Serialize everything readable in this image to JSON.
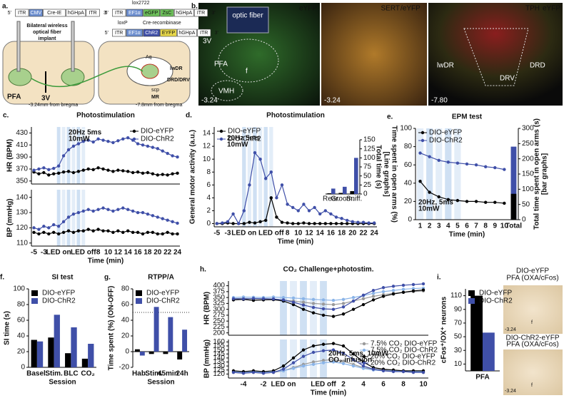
{
  "figure_a": {
    "label": "a.",
    "construct1": [
      "5'",
      "ITR",
      "CMV",
      "Cre-IE",
      "hGHpA",
      "ITR",
      "3'"
    ],
    "implant": [
      "Bilateral wireless",
      "optical fiber",
      "implant"
    ],
    "pfa": "PFA",
    "v3": "3V",
    "bregma1": "-3.24mm from bregma",
    "construct2": [
      "5'",
      "ITR",
      "EF1α",
      "eGFP",
      "ZsC",
      "hGHpA",
      "ITR",
      "3'"
    ],
    "lox": "lox2722",
    "loxp": "loxP",
    "cre": "Cre-recombinase",
    "construct3": [
      "5'",
      "ITR",
      "EF1α",
      "ChR2",
      "EYFP",
      "hGHpA",
      "ITR",
      "3'"
    ],
    "lwdr": "lwDR",
    "drd": "DRD/DRV",
    "scp": "scp",
    "mr": "MR",
    "bregma2": "-7.8mm from bregma",
    "aq": "Aq"
  },
  "figure_b": {
    "label": "b.",
    "img1": {
      "channel": "eYFP",
      "fiber": "optic fiber",
      "v3": "3V",
      "pfa": "PFA",
      "f": "f",
      "vmh": "VMH",
      "coord": "-3.24"
    },
    "img2": {
      "channel1": "SERT",
      "channel2": "/eYFP",
      "coord": "-3.24"
    },
    "img3": {
      "channel1": "TPH",
      "channel2": "eYFP",
      "lwdr": "lwDR",
      "drd": "DRD",
      "drv": "DRV",
      "coord": "-7.80"
    }
  },
  "figure_i": {
    "top": [
      "DIO-eYFP",
      "PFA (OXA/cFos)"
    ],
    "bottom": [
      "DIO-ChR2-eYFP",
      "PFA (OXA/cFos)"
    ],
    "coord1": "-3.24",
    "f1": "f",
    "coord2": "-3.24",
    "f2": "f"
  },
  "chart_data": [
    {
      "type": "line",
      "panel_label": "c.",
      "title": "Photostimulation",
      "ylabel": "HR (BPM)",
      "annotation": [
        "20Hz 5ms",
        "10mW"
      ],
      "legend": "upper right",
      "categories": [
        null,
        null,
        null,
        null,
        null,
        null,
        null,
        null,
        null,
        null,
        null,
        null,
        null,
        null,
        null,
        null,
        null,
        null,
        null,
        null,
        null,
        null,
        null,
        null,
        null,
        null,
        null,
        null,
        null,
        null
      ],
      "ylim": [
        345,
        440
      ],
      "yticks": [
        350,
        370,
        390,
        410,
        430
      ],
      "series": [
        {
          "name": "DIO-eYFP",
          "color": "#000000",
          "values": [
            365,
            362,
            364,
            360,
            362,
            363,
            365,
            366,
            364,
            366,
            368,
            370,
            369,
            372,
            370,
            368,
            366,
            368,
            367,
            366,
            364,
            365,
            363,
            364,
            362,
            360,
            361,
            360,
            362,
            363
          ]
        },
        {
          "name": "DIO-ChR2",
          "color": "#3f4fa8",
          "values": [
            368,
            370,
            372,
            369,
            371,
            375,
            392,
            402,
            408,
            412,
            416,
            418,
            415,
            420,
            418,
            416,
            414,
            417,
            420,
            422,
            418,
            412,
            410,
            408,
            406,
            404,
            400,
            396,
            392,
            390
          ]
        }
      ]
    },
    {
      "type": "line",
      "ylabel": "BP (mmHg)",
      "xlabel": "Time (min)",
      "categories": [
        "-5",
        null,
        "-3",
        null,
        null,
        "LED on",
        null,
        null,
        null,
        null,
        "LED off",
        null,
        null,
        "8",
        null,
        "10",
        null,
        "12",
        null,
        "14",
        null,
        "16",
        null,
        "18",
        null,
        "20",
        null,
        "22",
        null,
        "24"
      ],
      "ylim": [
        108,
        145
      ],
      "yticks": [
        110,
        120,
        130,
        140
      ],
      "series": [
        {
          "color": "#000000",
          "values": [
            117,
            116,
            117,
            116,
            117,
            116,
            117,
            118,
            117,
            118,
            118,
            119,
            118,
            119,
            118,
            118,
            117,
            118,
            117,
            118,
            117,
            117,
            116,
            117,
            117,
            116,
            116,
            117,
            116,
            116
          ]
        },
        {
          "color": "#3f4fa8",
          "values": [
            120,
            119,
            121,
            120,
            122,
            121,
            124,
            127,
            129,
            130,
            131,
            132,
            131,
            132,
            133,
            132,
            131,
            132,
            133,
            132,
            131,
            130,
            130,
            129,
            128,
            127,
            126,
            125,
            124,
            123
          ]
        }
      ]
    },
    {
      "type": "line",
      "panel_label": "d.",
      "title": "Photostimulation",
      "ylabel": "General motor activity (a.u.)",
      "xlabel": "Time (min)",
      "annotation": [
        "20Hz 5ms",
        "10mW"
      ],
      "legend": "upper left",
      "categories": [
        "-5",
        null,
        "-3",
        null,
        null,
        "LED on",
        null,
        null,
        null,
        null,
        "LED off",
        null,
        null,
        "8",
        null,
        "10",
        null,
        "12",
        null,
        "14",
        null,
        "16",
        null,
        "18",
        null,
        "20",
        null,
        "22",
        null,
        "24"
      ],
      "ylim": [
        -0.5,
        15
      ],
      "yticks": [
        0,
        2,
        4,
        6,
        8,
        10,
        12,
        14
      ],
      "series": [
        {
          "name": "DIO-eYFP",
          "color": "#000000",
          "values": [
            0,
            0,
            0.1,
            0,
            0,
            0,
            0.2,
            0.1,
            0.3,
            0.5,
            4,
            1,
            0.2,
            0.1,
            0,
            0,
            0.1,
            0,
            0,
            0,
            0,
            0,
            0,
            0,
            0,
            0,
            0,
            0,
            0,
            0
          ]
        },
        {
          "name": "DIO-ChR2",
          "color": "#3f4fa8",
          "values": [
            0,
            0.1,
            0.3,
            1.5,
            0,
            2,
            6,
            11,
            10,
            7,
            8,
            4,
            6,
            3,
            2.5,
            2,
            3,
            2,
            2.5,
            1.5,
            2,
            1.5,
            1,
            0.8,
            0.5,
            0.3,
            0.2,
            0.2,
            0.1,
            0.1
          ]
        }
      ]
    },
    {
      "type": "bar",
      "y_side": "right",
      "ylabel": "Total time (s)",
      "categories": [
        "Rear.",
        "Groom.",
        "Sniff."
      ],
      "ylim": [
        0,
        150
      ],
      "yticks": [
        0,
        25,
        50,
        75,
        100,
        125,
        150
      ],
      "series": [
        {
          "color": "#000000",
          "values": [
            2,
            3,
            8
          ]
        },
        {
          "color": "#3f4fa8",
          "values": [
            15,
            20,
            100
          ]
        }
      ]
    },
    {
      "type": "line",
      "panel_label": "e.",
      "title": "EPM test",
      "ylabel": [
        "Time spent in open arms (%)",
        "[Line graphs]"
      ],
      "y2label": [
        "Total time spent in open arms (s)",
        "[bar graphs]"
      ],
      "xlabel": "Time (min)",
      "annotation": [
        "20Hz, 5ms",
        "10mW"
      ],
      "legend": "upper left",
      "bar_mode": "overlay",
      "categories": [
        "1",
        "2",
        "3",
        "4",
        "5",
        "6",
        "7",
        "8",
        "9",
        "10",
        "Total"
      ],
      "ylim": [
        0,
        100
      ],
      "yticks": [
        0,
        20,
        40,
        60,
        80,
        100
      ],
      "y2lim": [
        0,
        300
      ],
      "y2ticks": [
        0,
        50,
        100,
        150,
        200,
        250,
        300
      ],
      "series": [
        {
          "name": "DIO-eYFP",
          "color": "#000000",
          "values": [
            42,
            30,
            25,
            22,
            21,
            20,
            20,
            19,
            19,
            18,
            null
          ]
        },
        {
          "name": "DIO-ChR2",
          "color": "#3f4fa8",
          "values": [
            73,
            69,
            65,
            63,
            62,
            61,
            60,
            58,
            57,
            55,
            null
          ]
        },
        {
          "type": "bar",
          "axis": "y2",
          "color": "#3f4fa8",
          "values": [
            null,
            null,
            null,
            null,
            null,
            null,
            null,
            null,
            null,
            null,
            240
          ]
        },
        {
          "type": "bar",
          "axis": "y2",
          "color": "#000000",
          "values": [
            null,
            null,
            null,
            null,
            null,
            null,
            null,
            null,
            null,
            null,
            85
          ]
        }
      ]
    },
    {
      "type": "bar",
      "panel_label": "f.",
      "title": "SI test",
      "ylabel": "SI time (s)",
      "xlabel": "Session",
      "legend": "upper left",
      "categories": [
        "Basel.",
        "Stim.",
        "BLC",
        "CO₂"
      ],
      "ylim": [
        0,
        100
      ],
      "yticks": [
        0,
        20,
        40,
        60,
        80,
        100
      ],
      "series": [
        {
          "name": "DIO-eYFP",
          "color": "#000000",
          "values": [
            35,
            38,
            18,
            11
          ]
        },
        {
          "name": "DIO-ChR2",
          "color": "#3f4fa8",
          "values": [
            33,
            67,
            51,
            30
          ]
        }
      ]
    },
    {
      "type": "bar",
      "panel_label": "g.",
      "title": "RTPP/A",
      "ylabel": "Time spent (%) (ON-OFF)",
      "xlabel": "Session",
      "legend": "upper left",
      "hline": 50,
      "categories": [
        "Hab.",
        "Stim.",
        "45min",
        "24h"
      ],
      "ylim": [
        -20,
        80
      ],
      "yticks": [
        -20,
        0,
        20,
        40,
        60,
        80
      ],
      "series": [
        {
          "name": "DIO-eYFP",
          "color": "#000000",
          "values": [
            3,
            -3,
            -3,
            -10
          ]
        },
        {
          "name": "DIO-ChR2",
          "color": "#3f4fa8",
          "values": [
            -5,
            57,
            44,
            28
          ]
        }
      ]
    },
    {
      "type": "line",
      "panel_label": "h.",
      "title": "CO₂ Challenge+photostim.",
      "ylabel": "HR (BPM)",
      "categories": [
        null,
        null,
        null,
        null,
        null,
        null,
        null,
        null,
        null,
        null,
        null,
        null,
        null,
        null,
        null,
        null,
        null,
        null,
        null,
        null
      ],
      "ylim": [
        190,
        420
      ],
      "yticks": [
        200,
        225,
        250,
        275,
        300,
        325,
        350,
        375,
        400
      ],
      "series": [
        {
          "color": "#9a9a9a",
          "values": [
            345,
            346,
            344,
            345,
            343,
            340,
            335,
            330,
            325,
            322,
            320,
            325,
            335,
            345,
            355,
            362,
            368,
            372,
            375,
            378
          ]
        },
        {
          "color": "#8ab4e8",
          "values": [
            350,
            352,
            351,
            350,
            352,
            350,
            348,
            345,
            342,
            340,
            338,
            342,
            350,
            358,
            368,
            375,
            380,
            385,
            388,
            390
          ]
        },
        {
          "color": "#000000",
          "values": [
            340,
            342,
            338,
            340,
            341,
            335,
            320,
            300,
            285,
            275,
            270,
            280,
            300,
            320,
            340,
            355,
            365,
            372,
            378,
            382
          ]
        },
        {
          "color": "#3f4fa8",
          "values": [
            345,
            344,
            346,
            345,
            344,
            340,
            330,
            318,
            308,
            302,
            300,
            310,
            335,
            360,
            380,
            392,
            398,
            402,
            405,
            408
          ]
        }
      ]
    },
    {
      "type": "line",
      "ylabel": "BP (mmHg)",
      "xlabel": "Time (min)",
      "legend": "upper right",
      "annotation": [
        "20Hz, 5ms, 10mW",
        "CO₂ infusion"
      ],
      "categories": [
        null,
        "-4",
        null,
        "-2",
        null,
        "LED on",
        null,
        null,
        null,
        "LED off",
        null,
        "2",
        null,
        "4",
        null,
        "6",
        null,
        "8",
        null,
        "10"
      ],
      "ylim": [
        115,
        163
      ],
      "yticks": [
        120,
        125,
        130,
        135,
        140,
        145,
        150,
        155,
        160
      ],
      "series": [
        {
          "name": "7.5% CO₂ DIO-eYFP",
          "color": "#9a9a9a",
          "values": [
            122,
            121,
            122,
            121,
            122,
            124,
            128,
            132,
            135,
            137,
            138,
            136,
            132,
            128,
            126,
            125,
            124,
            123,
            123,
            122
          ]
        },
        {
          "name": "7.5% CO₂ DIO-ChR2",
          "color": "#8ab4e8",
          "values": [
            123,
            122,
            123,
            122,
            123,
            124,
            127,
            130,
            132,
            134,
            135,
            133,
            130,
            127,
            125,
            124,
            124,
            123,
            123,
            123
          ]
        },
        {
          "name": "20% CO₂ DIO-eYFP",
          "color": "#000000",
          "values": [
            124,
            123,
            124,
            123,
            124,
            130,
            140,
            150,
            155,
            157,
            158,
            155,
            145,
            135,
            128,
            126,
            125,
            124,
            124,
            124
          ]
        },
        {
          "name": "20% CO₂ DIO-ChR2",
          "color": "#3f4fa8",
          "values": [
            122,
            121,
            122,
            121,
            122,
            126,
            134,
            142,
            147,
            149,
            150,
            146,
            138,
            130,
            126,
            124,
            123,
            123,
            122,
            122
          ]
        }
      ]
    },
    {
      "type": "bar",
      "panel_label": "i.",
      "ylabel": "cFos⁺/OX⁺ neurons",
      "legend": "upper left",
      "categories": [
        "PFA"
      ],
      "ylim": [
        0,
        120
      ],
      "yticks": [
        10,
        30,
        50,
        70,
        90,
        110
      ],
      "series": [
        {
          "name": "DIO-eYFP",
          "color": "#000000",
          "values": [
            110
          ]
        },
        {
          "name": "DIO-ChR2",
          "color": "#3f4fa8",
          "values": [
            56
          ]
        }
      ]
    }
  ]
}
